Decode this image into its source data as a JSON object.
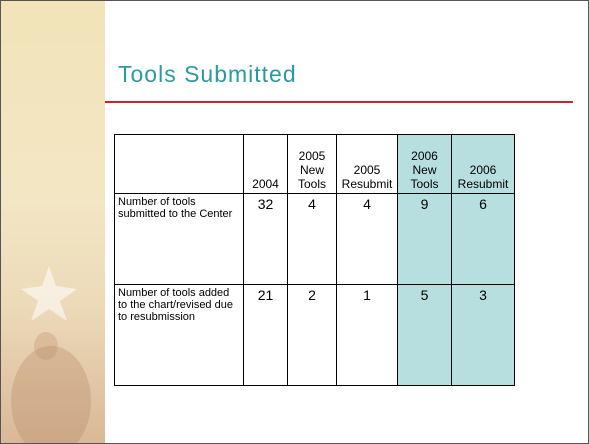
{
  "header": {
    "title": "Tools Submitted"
  },
  "table": {
    "columns": [
      "",
      "2004",
      "2005\nNew\nTools",
      "2005\nResubmit",
      "2006\nNew\nTools",
      "2006\nResubmit"
    ],
    "rows": [
      [
        "Number of tools submitted to the Center",
        32,
        4,
        4,
        9,
        6
      ],
      [
        "Number of tools added to the chart/revised due to resubmission",
        21,
        2,
        1,
        5,
        3
      ]
    ]
  }
}
